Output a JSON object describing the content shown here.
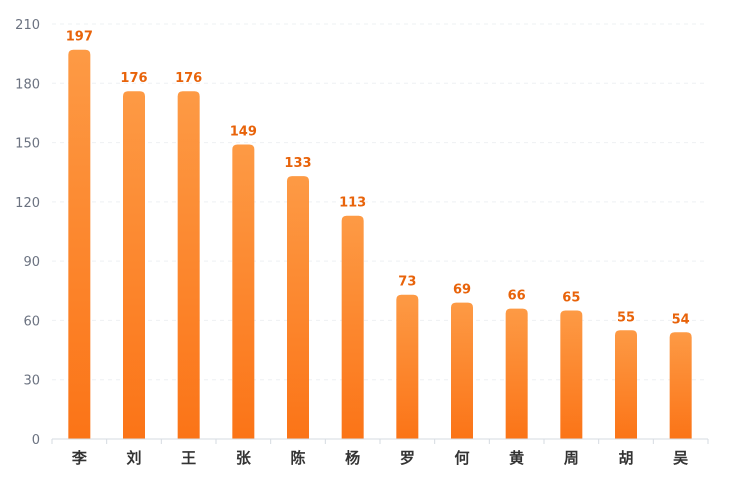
{
  "chart_data": {
    "type": "bar",
    "title": "",
    "xlabel": "",
    "ylabel": "",
    "categories": [
      "李",
      "刘",
      "王",
      "张",
      "陈",
      "杨",
      "罗",
      "何",
      "黄",
      "周",
      "胡",
      "吴"
    ],
    "values": [
      197,
      176,
      176,
      149,
      133,
      113,
      73,
      69,
      66,
      65,
      55,
      54
    ],
    "ylim": [
      0,
      210
    ],
    "yticks": [
      0,
      30,
      60,
      90,
      120,
      150,
      180,
      210
    ],
    "grid": true,
    "legend": "none",
    "colors": {
      "bar_top": "#fd9a45",
      "bar_bottom": "#fb7417",
      "data_label": "#e8630a"
    }
  }
}
